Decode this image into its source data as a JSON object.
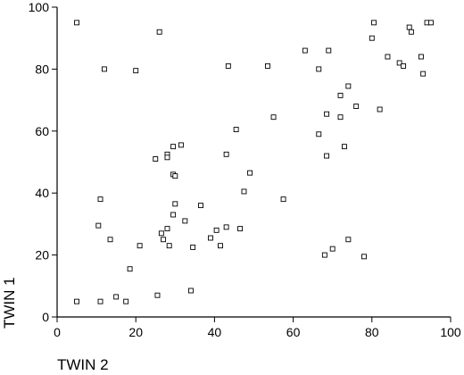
{
  "chart_data": {
    "type": "scatter",
    "xlabel": "TWIN 2",
    "ylabel": "TWIN 1",
    "xlim": [
      0,
      100
    ],
    "ylim": [
      0,
      100
    ],
    "xticks": [
      0,
      20,
      40,
      60,
      80,
      100
    ],
    "yticks": [
      0,
      20,
      40,
      60,
      80,
      100
    ],
    "x_tick_labels": [
      "0",
      "20",
      "40",
      "60",
      "80",
      "100"
    ],
    "y_tick_labels": [
      "0",
      "20",
      "40",
      "60",
      "80",
      "100"
    ],
    "grid": false,
    "marker": "open-square",
    "points": [
      {
        "x": 5,
        "y": 95
      },
      {
        "x": 26,
        "y": 92
      },
      {
        "x": 12,
        "y": 80
      },
      {
        "x": 20,
        "y": 79.5
      },
      {
        "x": 43.5,
        "y": 81
      },
      {
        "x": 53.5,
        "y": 81
      },
      {
        "x": 63,
        "y": 86
      },
      {
        "x": 69,
        "y": 86
      },
      {
        "x": 66.5,
        "y": 80
      },
      {
        "x": 80.5,
        "y": 95
      },
      {
        "x": 80,
        "y": 90
      },
      {
        "x": 89.5,
        "y": 93.5
      },
      {
        "x": 90,
        "y": 92
      },
      {
        "x": 94,
        "y": 95
      },
      {
        "x": 95,
        "y": 95
      },
      {
        "x": 92.5,
        "y": 84
      },
      {
        "x": 93,
        "y": 78.5
      },
      {
        "x": 84,
        "y": 84
      },
      {
        "x": 87,
        "y": 82
      },
      {
        "x": 88,
        "y": 81
      },
      {
        "x": 74,
        "y": 74.5
      },
      {
        "x": 72,
        "y": 71.5
      },
      {
        "x": 76,
        "y": 68
      },
      {
        "x": 82,
        "y": 67
      },
      {
        "x": 68.5,
        "y": 65.5
      },
      {
        "x": 72,
        "y": 64.5
      },
      {
        "x": 55,
        "y": 64.5
      },
      {
        "x": 66.5,
        "y": 59
      },
      {
        "x": 45.5,
        "y": 60.5
      },
      {
        "x": 73,
        "y": 55
      },
      {
        "x": 68.5,
        "y": 52
      },
      {
        "x": 31.5,
        "y": 55.5
      },
      {
        "x": 29.5,
        "y": 55
      },
      {
        "x": 28,
        "y": 52.5
      },
      {
        "x": 28,
        "y": 51.5
      },
      {
        "x": 25,
        "y": 51
      },
      {
        "x": 43,
        "y": 52.5
      },
      {
        "x": 29.5,
        "y": 46
      },
      {
        "x": 30,
        "y": 45.5
      },
      {
        "x": 49,
        "y": 46.5
      },
      {
        "x": 47.5,
        "y": 40.5
      },
      {
        "x": 57.5,
        "y": 38
      },
      {
        "x": 11,
        "y": 38
      },
      {
        "x": 30,
        "y": 36.5
      },
      {
        "x": 36.5,
        "y": 36
      },
      {
        "x": 29.5,
        "y": 33
      },
      {
        "x": 32.5,
        "y": 31
      },
      {
        "x": 10.5,
        "y": 29.5
      },
      {
        "x": 28,
        "y": 28.5
      },
      {
        "x": 40.5,
        "y": 28
      },
      {
        "x": 43,
        "y": 29
      },
      {
        "x": 46.5,
        "y": 28.5
      },
      {
        "x": 26.5,
        "y": 27
      },
      {
        "x": 39,
        "y": 25.5
      },
      {
        "x": 27,
        "y": 25
      },
      {
        "x": 13.5,
        "y": 25
      },
      {
        "x": 74,
        "y": 25
      },
      {
        "x": 21,
        "y": 23
      },
      {
        "x": 28.5,
        "y": 23
      },
      {
        "x": 41.5,
        "y": 23
      },
      {
        "x": 34.5,
        "y": 22.5
      },
      {
        "x": 70,
        "y": 22
      },
      {
        "x": 68,
        "y": 20
      },
      {
        "x": 78,
        "y": 19.5
      },
      {
        "x": 18.5,
        "y": 15.5
      },
      {
        "x": 34,
        "y": 8.5
      },
      {
        "x": 25.5,
        "y": 7
      },
      {
        "x": 15,
        "y": 6.5
      },
      {
        "x": 5,
        "y": 5
      },
      {
        "x": 11,
        "y": 5
      },
      {
        "x": 17.5,
        "y": 5
      }
    ]
  }
}
